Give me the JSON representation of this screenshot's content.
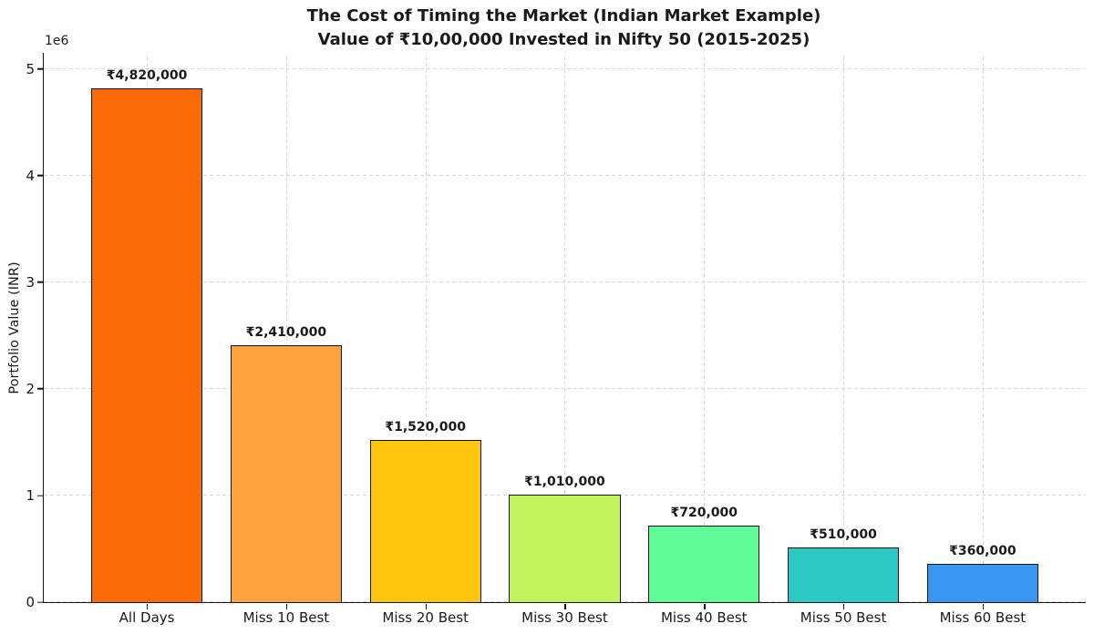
{
  "chart_data": {
    "type": "bar",
    "title": "The Cost of Timing the Market (Indian Market Example)",
    "subtitle": "Value of ₹10,00,000 Invested in Nifty 50 (2015-2025)",
    "ylabel": "Portfolio Value (INR)",
    "y_offset_label": "1e6",
    "categories": [
      "All Days",
      "Miss 10 Best",
      "Miss 20 Best",
      "Miss 30 Best",
      "Miss 40 Best",
      "Miss 50 Best",
      "Miss 60 Best"
    ],
    "values": [
      4820000,
      2410000,
      1520000,
      1010000,
      720000,
      510000,
      360000
    ],
    "bar_labels": [
      "₹4,820,000",
      "₹2,410,000",
      "₹1,520,000",
      "₹1,010,000",
      "₹720,000",
      "₹510,000",
      "₹360,000"
    ],
    "bar_colors": [
      "#fb6c08",
      "#fca33d",
      "#fcc70e",
      "#c2f55d",
      "#60fa97",
      "#2ec9c4",
      "#3a97f1"
    ],
    "bar_edge_color": "#141414",
    "yticks": [
      {
        "value": 0,
        "label": "0"
      },
      {
        "value": 1000000,
        "label": "1"
      },
      {
        "value": 2000000,
        "label": "2"
      },
      {
        "value": 3000000,
        "label": "3"
      },
      {
        "value": 4000000,
        "label": "4"
      },
      {
        "value": 5000000,
        "label": "5"
      }
    ],
    "ylim": [
      0,
      5150000
    ],
    "grid": true,
    "grid_style": "dashed",
    "legend": null,
    "background_color": "#ffffff"
  }
}
